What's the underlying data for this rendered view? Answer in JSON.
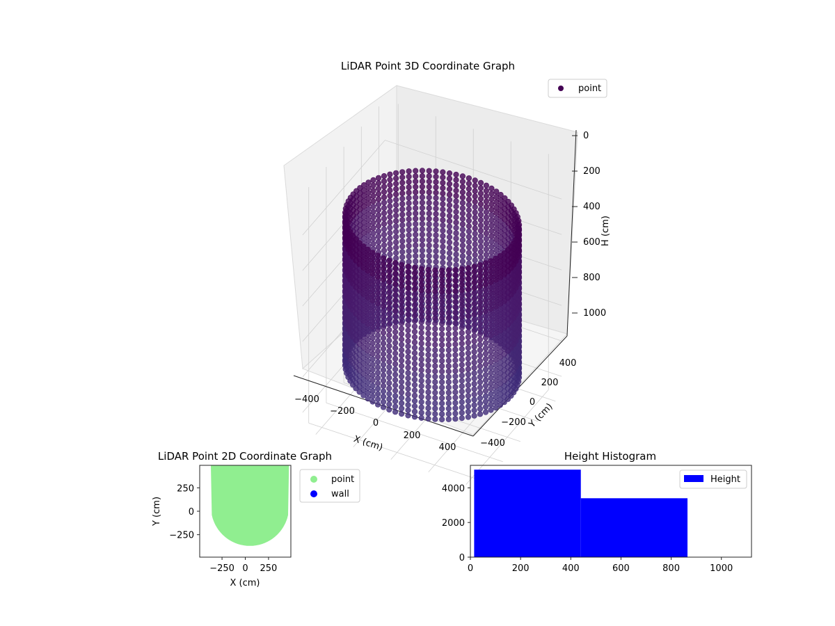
{
  "chart_data": [
    {
      "type": "scatter3d",
      "title": "LiDAR Point 3D Coordinate Graph",
      "xlabel": "X (cm)",
      "ylabel": "Y (cm)",
      "zlabel": "H (cm)",
      "xticks": [
        -400,
        -200,
        0,
        200,
        400
      ],
      "yticks": [
        -400,
        -200,
        0,
        200,
        400
      ],
      "zticks": [
        0,
        200,
        400,
        600,
        800,
        1000
      ],
      "zticklabels_visible": [
        "0",
        "200",
        "400",
        "600",
        "800",
        "1000"
      ],
      "xlim": [
        -450,
        450
      ],
      "ylim": [
        -450,
        450
      ],
      "zlim": [
        1100,
        0
      ],
      "z_inverted": true,
      "legend": [
        "point"
      ],
      "legend_position": "top-right",
      "grid": true,
      "series": [
        {
          "name": "point",
          "shape": "partial cylinder of vertical scan lines",
          "radius": 420,
          "z_range": [
            20,
            870
          ],
          "colormap": "viridis (dark purple)",
          "color": "#440154"
        }
      ]
    },
    {
      "type": "scatter",
      "title": "LiDAR Point 2D Coordinate Graph",
      "xlabel": "X (cm)",
      "ylabel": "Y (cm)",
      "xticks": [
        -250,
        0,
        250
      ],
      "xticklabels": [
        "−250",
        "0",
        "250"
      ],
      "yticks": [
        -250,
        0,
        250
      ],
      "yticklabels": [
        "−250",
        "0",
        "250"
      ],
      "xlim": [
        -490,
        490
      ],
      "ylim": [
        -490,
        490
      ],
      "legend_position": "outside-right",
      "series": [
        {
          "name": "point",
          "color": "#90ee90",
          "region": "y >= 50 - sqrt(420^2 - (x-50)^2), |x| <= 490, y <= 490"
        },
        {
          "name": "wall",
          "color": "#0000ff",
          "points": []
        }
      ]
    },
    {
      "type": "histogram",
      "title": "Height Histogram",
      "xlabel": "",
      "ylabel": "",
      "bins": [
        [
          15,
          440
        ],
        [
          440,
          865
        ]
      ],
      "values": [
        5050,
        3400
      ],
      "xlim": [
        0,
        1120
      ],
      "ylim": [
        0,
        5300
      ],
      "xticks": [
        0,
        200,
        400,
        600,
        800,
        1000
      ],
      "yticks": [
        0,
        2000,
        4000
      ],
      "legend": [
        "Height"
      ],
      "legend_position": "top-right",
      "color": "#0000ff"
    }
  ]
}
